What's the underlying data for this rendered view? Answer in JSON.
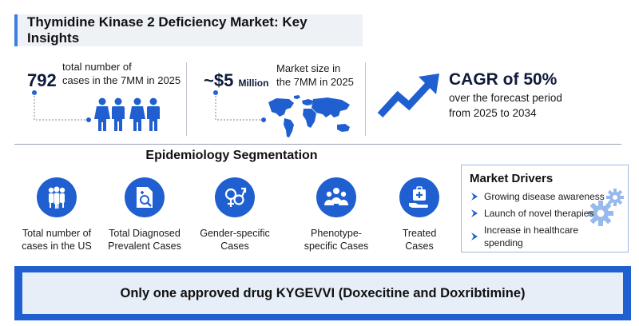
{
  "title": "Thymidine Kinase 2 Deficiency Market: Key Insights",
  "stats": {
    "cases": {
      "value": "792",
      "desc_line1": "total number of",
      "desc_line2": "cases in the 7MM in 2025"
    },
    "market": {
      "value": "~$5",
      "unit": "Million",
      "desc_line1": "Market size in",
      "desc_line2": "the 7MM in 2025"
    },
    "cagr": {
      "value": "CAGR of 50%",
      "desc_line1": "over the forecast period",
      "desc_line2": "from 2025 to 2034"
    }
  },
  "segmentation": {
    "title": "Epidemiology Segmentation",
    "items": [
      {
        "icon": "group-people-icon",
        "line1": "Total number of",
        "line2": "cases in the US"
      },
      {
        "icon": "diagnosis-report-icon",
        "line1": "Total Diagnosed",
        "line2": "Prevalent Cases"
      },
      {
        "icon": "gender-symbols-icon",
        "line1": "Gender-specific",
        "line2": "Cases"
      },
      {
        "icon": "people-cluster-icon",
        "line1": "Phenotype-",
        "line2": "specific Cases"
      },
      {
        "icon": "medical-kit-hand-icon",
        "line1": "Treated",
        "line2": "Cases"
      }
    ]
  },
  "drivers": {
    "title": "Market Drivers",
    "items": [
      "Growing disease awareness",
      "Launch of novel therapies",
      "Increase in healthcare spending"
    ]
  },
  "banner": "Only one approved drug KYGEVVI (Doxecitine and Doxribtimine)",
  "colors": {
    "accent_blue": "#1f5fd0",
    "dark_navy": "#0e1b3a",
    "banner_bg": "#e6eef8"
  }
}
